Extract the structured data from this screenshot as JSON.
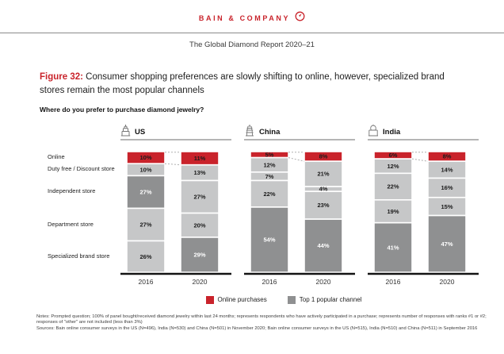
{
  "header": {
    "brand": "BAIN & COMPANY",
    "report_title": "The Global Diamond Report 2020–21"
  },
  "figure": {
    "label": "Figure 32:",
    "title": "Consumer shopping preferences are slowly shifting to online, however, specialized brand stores remain the most popular channels",
    "question": "Where do you prefer to purchase diamond jewelry?"
  },
  "chart_data": {
    "type": "bar",
    "stacked": true,
    "unit": "%",
    "title": "Where do you prefer to purchase diamond jewelry?",
    "xlabel": "",
    "ylabel": "",
    "ylim": [
      0,
      100
    ],
    "categories": [
      "Online",
      "Duty free / Discount store",
      "Independent store",
      "Department store",
      "Specialized brand store"
    ],
    "groups": [
      {
        "country": "US",
        "icon": "us-skyscraper-icon",
        "columns": [
          {
            "year": "2016",
            "values": [
              10,
              10,
              27,
              27,
              26
            ],
            "top1_index": 2
          },
          {
            "year": "2020",
            "values": [
              11,
              13,
              27,
              20,
              29
            ],
            "top1_index": 4
          }
        ]
      },
      {
        "country": "China",
        "icon": "china-temple-icon",
        "columns": [
          {
            "year": "2016",
            "values": [
              5,
              12,
              7,
              22,
              54
            ],
            "top1_index": 4
          },
          {
            "year": "2020",
            "values": [
              8,
              21,
              4,
              23,
              44
            ],
            "top1_index": 4
          }
        ]
      },
      {
        "country": "India",
        "icon": "india-taj-mahal-icon",
        "columns": [
          {
            "year": "2016",
            "values": [
              6,
              12,
              22,
              19,
              41
            ],
            "top1_index": 4
          },
          {
            "year": "2020",
            "values": [
              8,
              14,
              16,
              15,
              47
            ],
            "top1_index": 4
          }
        ]
      }
    ],
    "legend": [
      {
        "label": "Online purchases",
        "color": "#c9232b"
      },
      {
        "label": "Top 1 popular channel",
        "color": "#8f9091"
      }
    ],
    "colors": {
      "online": "#c9232b",
      "top1": "#8f9091",
      "other": "#c6c7c8"
    },
    "legend_position": "bottom"
  },
  "notes": {
    "note": "Notes: Prompted question; 100% of panel bought/received diamond jewelry within last 24 months; represents respondents who have actively participated in a purchase; represents number of responses with ranks #1 or #2; responses of \"other\" are not included (less than 3%)",
    "sources": "Sources: Bain online consumer surveys in the US (N=496), India (N=530) and China (N=501) in November 2020; Bain online consumer surveys in the US (N=515), India (N=510) and China (N=511) in September 2016"
  }
}
